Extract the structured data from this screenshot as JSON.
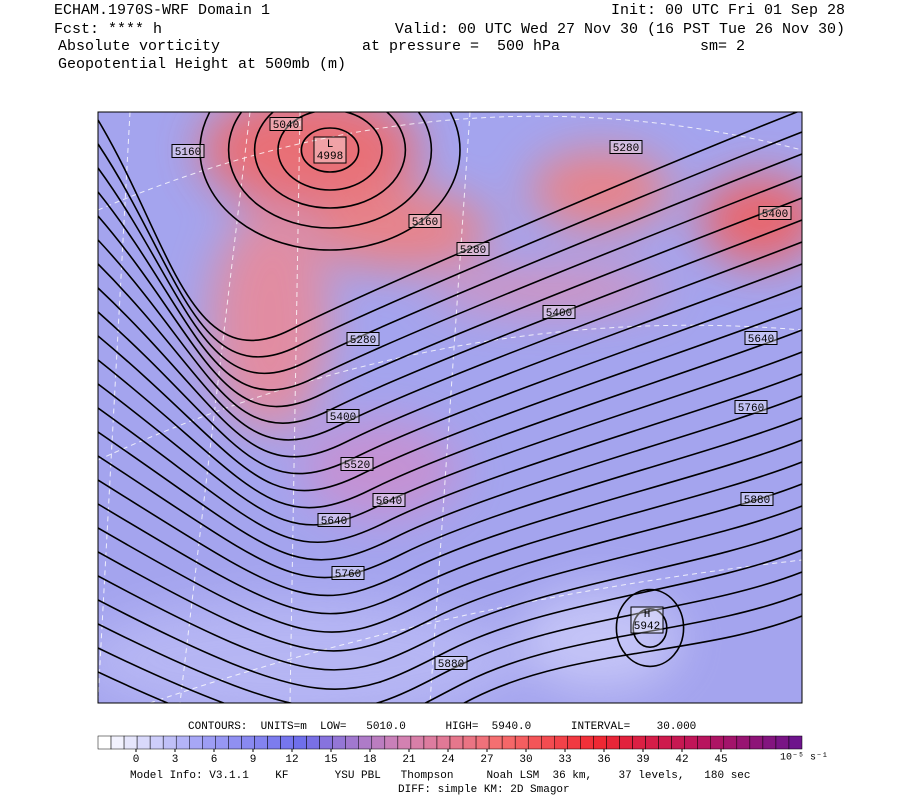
{
  "header": {
    "left": [
      "ECHAM.1970S-WRF Domain 1",
      "Fcst: **** h",
      "Absolute vorticity",
      "Geopotential Height at 500mb (m)"
    ],
    "init": "Init: 00 UTC Fri 01 Sep 28",
    "valid": "Valid: 00 UTC Wed 27 Nov 30 (16 PST Tue 26 Nov 30)",
    "pressure": "at pressure =  500 hPa",
    "smooth": "sm= 2"
  },
  "map": {
    "contour_labels": [
      "5040",
      "5160",
      "5160",
      "5280",
      "5400",
      "5280",
      "5400",
      "5640",
      "5280",
      "5760",
      "5400",
      "5520",
      "5640",
      "5880",
      "5640",
      "5760",
      "5880"
    ],
    "low": {
      "symbol": "L",
      "value": "4998"
    },
    "high": {
      "symbol": "H",
      "value": "5942"
    }
  },
  "colorbar": {
    "ticks": [
      0,
      3,
      6,
      9,
      12,
      15,
      18,
      21,
      24,
      27,
      30,
      33,
      36,
      39,
      42,
      45
    ],
    "unit": "10⁻⁵ s⁻¹"
  },
  "footer": {
    "contours": "CONTOURS:  UNITS=m  LOW=   5010.0      HIGH=  5940.0      INTERVAL=    30.000",
    "model": "Model Info: V3.1.1    KF       YSU PBL   Thompson     Noah LSM  36 km,    37 levels,   180 sec",
    "diff": "DIFF: simple KM: 2D Smagor"
  }
}
